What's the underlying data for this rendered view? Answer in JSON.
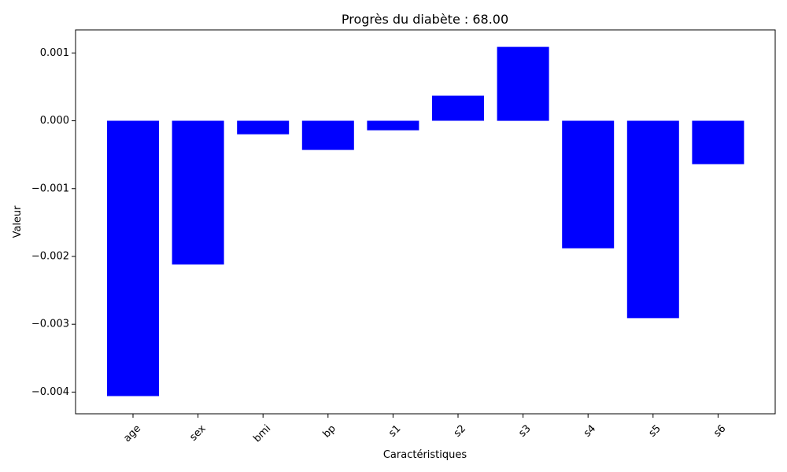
{
  "chart_data": {
    "type": "bar",
    "title": "Progrès du diabète : 68.00",
    "xlabel": "Caractéristiques",
    "ylabel": "Valeur",
    "categories": [
      "age",
      "sex",
      "bmi",
      "bp",
      "s1",
      "s2",
      "s3",
      "s4",
      "s5",
      "s6"
    ],
    "values": [
      -0.00406,
      -0.00212,
      -0.0002,
      -0.00043,
      -0.00014,
      0.00037,
      0.00109,
      -0.00188,
      -0.00291,
      -0.00064
    ],
    "ylim": [
      -0.00432,
      0.00134
    ],
    "yticks": [
      0.001,
      0.0,
      -0.001,
      -0.002,
      -0.003,
      -0.004
    ],
    "ytick_labels": [
      "0.001",
      "0.000",
      "−0.001",
      "−0.002",
      "−0.003",
      "−0.004"
    ],
    "bar_color": "#0000ff",
    "grid": false,
    "legend": false
  }
}
